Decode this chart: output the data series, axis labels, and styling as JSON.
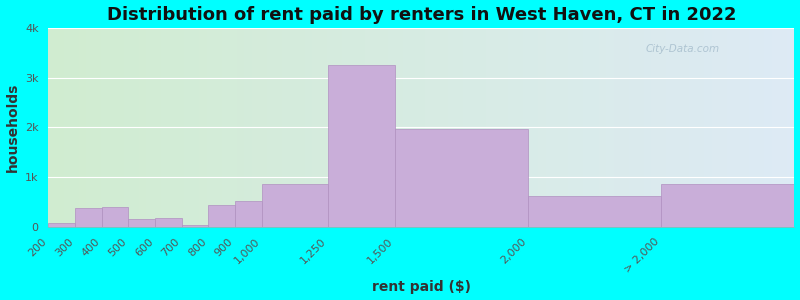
{
  "title": "Distribution of rent paid by renters in West Haven, CT in 2022",
  "xlabel": "rent paid ($)",
  "ylabel": "households",
  "bar_color": "#c9aed9",
  "bar_edge_color": "#b090c0",
  "background_color": "#00ffff",
  "plot_bg_left": "#d0ecd0",
  "plot_bg_right": "#ddeaf5",
  "categories": [
    "200",
    "300",
    "400",
    "500",
    "600",
    "700",
    "800",
    "900",
    "1,000",
    "1,250",
    "1,500",
    "2,000",
    "> 2,000"
  ],
  "bin_left": [
    200,
    300,
    400,
    500,
    600,
    700,
    800,
    900,
    1000,
    1250,
    1500,
    2000,
    2500
  ],
  "bin_right": [
    300,
    400,
    500,
    600,
    700,
    800,
    900,
    1000,
    1250,
    1500,
    2000,
    2500,
    3000
  ],
  "values": [
    75,
    380,
    390,
    165,
    175,
    35,
    430,
    510,
    850,
    3250,
    1960,
    620,
    850
  ],
  "tick_positions": [
    200,
    300,
    400,
    500,
    600,
    700,
    800,
    900,
    1000,
    1250,
    1500,
    2000,
    2500
  ],
  "tick_labels": [
    "200",
    "300",
    "400",
    "500",
    "600",
    "700",
    "800",
    "900",
    "1,000",
    "1,250",
    "1,500",
    "2,000",
    "> 2,000"
  ],
  "ylim": [
    0,
    4000
  ],
  "xlim": [
    200,
    3000
  ],
  "yticks": [
    0,
    1000,
    2000,
    3000,
    4000
  ],
  "ytick_labels": [
    "0",
    "1k",
    "2k",
    "3k",
    "4k"
  ],
  "title_fontsize": 13,
  "axis_label_fontsize": 10,
  "tick_fontsize": 8,
  "watermark": "City-Data.com"
}
